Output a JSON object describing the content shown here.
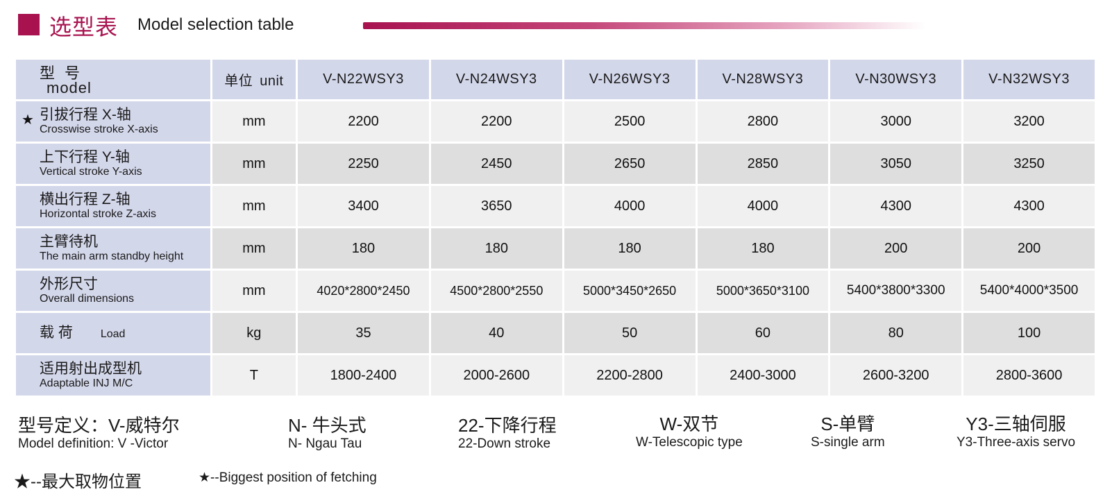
{
  "header": {
    "title_cn": "选型表",
    "title_en": "Model selection table"
  },
  "table": {
    "head": {
      "model_cn": "型号",
      "model_en": "model",
      "unit_cn": "单位",
      "unit_en": "unit",
      "models": [
        "V-N22WSY3",
        "V-N24WSY3",
        "V-N26WSY3",
        "V-N28WSY3",
        "V-N30WSY3",
        "V-N32WSY3"
      ]
    },
    "rows": [
      {
        "star": "★",
        "cn": "引拔行程 X-轴",
        "en": "Crosswise stroke X-axis",
        "unit": "mm",
        "values": [
          "2200",
          "2200",
          "2500",
          "2800",
          "3000",
          "3200"
        ]
      },
      {
        "star": "",
        "cn": "上下行程 Y-轴",
        "en": "Vertical stroke Y-axis",
        "unit": "mm",
        "values": [
          "2250",
          "2450",
          "2650",
          "2850",
          "3050",
          "3250"
        ]
      },
      {
        "star": "",
        "cn": "横出行程 Z-轴",
        "en": "Horizontal stroke Z-axis",
        "unit": "mm",
        "values": [
          "3400",
          "3650",
          "4000",
          "4000",
          "4300",
          "4300"
        ]
      },
      {
        "star": "",
        "cn": "主臂待机",
        "en": "The main arm standby height",
        "unit": "mm",
        "values": [
          "180",
          "180",
          "180",
          "180",
          "200",
          "200"
        ]
      },
      {
        "star": "",
        "cn": "外形尺寸",
        "en": "Overall dimensions",
        "unit": "mm",
        "values": [
          "4020*2800*2450",
          "4500*2800*2550",
          "5000*3450*2650",
          "5000*3650*3100",
          "5400*3800*3300",
          "5400*4000*3500"
        ]
      },
      {
        "star": "",
        "cn": "载 荷",
        "en": "Load",
        "unit": "kg",
        "values": [
          "35",
          "40",
          "50",
          "60",
          "80",
          "100"
        ]
      },
      {
        "star": "",
        "cn": "适用射出成型机",
        "en": "Adaptable INJ M/C",
        "unit": "T",
        "values": [
          "1800-2400",
          "2000-2600",
          "2200-2800",
          "2400-3000",
          "2600-3200",
          "2800-3600"
        ]
      }
    ]
  },
  "footer": {
    "items": [
      {
        "cn": "型号定义：V-威特尔",
        "en": "Model definition: V -Victor"
      },
      {
        "cn": "N- 牛头式",
        "en": "N- Ngau Tau"
      },
      {
        "cn": "22-下降行程",
        "en": "22-Down stroke"
      },
      {
        "cn": "W-双节",
        "en": "W-Telescopic type"
      },
      {
        "cn": "S-单臂",
        "en": "S-single arm"
      },
      {
        "cn": "Y3-三轴伺服",
        "en": "Y3-Three-axis servo"
      }
    ],
    "star_cn": "★--最大取物位置",
    "star_en": "★--Biggest position of fetching"
  }
}
